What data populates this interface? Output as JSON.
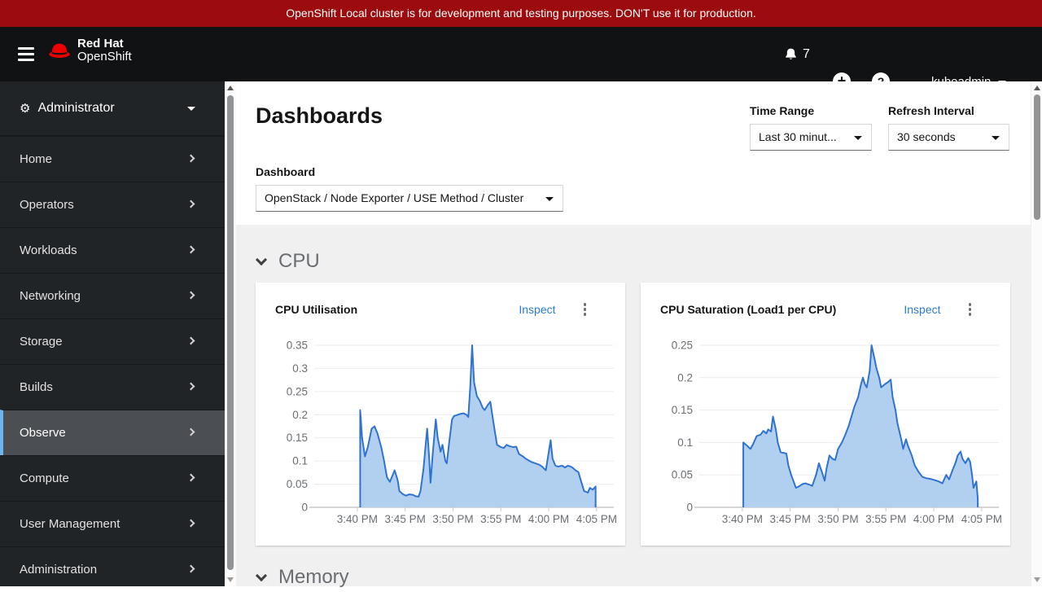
{
  "banner": {
    "text": "OpenShift Local cluster is for development and testing purposes. DON'T use it for production."
  },
  "masthead": {
    "logo_line1": "Red Hat",
    "logo_line2": "OpenShift",
    "notification_count": "7",
    "user": "kubeadmin"
  },
  "sidebar": {
    "perspective": "Administrator",
    "items": [
      {
        "label": "Home",
        "selected": false
      },
      {
        "label": "Operators",
        "selected": false
      },
      {
        "label": "Workloads",
        "selected": false
      },
      {
        "label": "Networking",
        "selected": false
      },
      {
        "label": "Storage",
        "selected": false
      },
      {
        "label": "Builds",
        "selected": false
      },
      {
        "label": "Observe",
        "selected": true
      },
      {
        "label": "Compute",
        "selected": false
      },
      {
        "label": "User Management",
        "selected": false
      },
      {
        "label": "Administration",
        "selected": false
      }
    ]
  },
  "page": {
    "title": "Dashboards",
    "time_range": {
      "label": "Time Range",
      "value": "Last 30 minut..."
    },
    "refresh_interval": {
      "label": "Refresh Interval",
      "value": "30 seconds"
    },
    "dashboard": {
      "label": "Dashboard",
      "value": "OpenStack / Node Exporter / USE Method / Cluster"
    },
    "sections": [
      {
        "title": "CPU",
        "expanded": true
      },
      {
        "title": "Memory",
        "expanded": true
      }
    ]
  },
  "cards": [
    {
      "title": "CPU Utilisation",
      "action": "Inspect"
    },
    {
      "title": "CPU Saturation (Load1 per CPU)",
      "action": "Inspect"
    }
  ],
  "colors": {
    "banner": "#9c0b0d",
    "brand_red": "#ee0000",
    "link": "#2b7cd9",
    "selected_nav_border": "#6cb5ee",
    "chart_stroke": "#2f72d0",
    "chart_fill": "#b1d0f0",
    "chart_grid": "#ececec",
    "chart_axis": "#c8c8ca",
    "chart_text": "#6a6e73"
  },
  "chart_data": [
    {
      "type": "area",
      "title": "CPU Utilisation",
      "x_unit": "minutes after 3:40 PM",
      "x_domain": [
        -4.5,
        26.8
      ],
      "y_domain": [
        0,
        0.35
      ],
      "x_ticks": [
        0,
        5,
        10,
        15,
        20,
        25
      ],
      "x_tick_labels": [
        "3:40 PM",
        "3:45 PM",
        "3:50 PM",
        "3:55 PM",
        "4:00 PM",
        "4:05 PM"
      ],
      "y_ticks": [
        0,
        0.05,
        0.1,
        0.15,
        0.2,
        0.25,
        0.3,
        0.35
      ],
      "y_tick_labels": [
        "0",
        "0.05",
        "0.1",
        "0.15",
        "0.2",
        "0.25",
        "0.3",
        "0.35"
      ],
      "grid": "horizontal",
      "legend": "none",
      "points": [
        [
          0.3,
          0.21
        ],
        [
          0.5,
          0.15
        ],
        [
          0.8,
          0.11
        ],
        [
          1.1,
          0.13
        ],
        [
          1.5,
          0.17
        ],
        [
          1.8,
          0.175
        ],
        [
          2.1,
          0.16
        ],
        [
          2.5,
          0.13
        ],
        [
          2.8,
          0.1
        ],
        [
          3.1,
          0.065
        ],
        [
          3.4,
          0.055
        ],
        [
          3.7,
          0.07
        ],
        [
          3.9,
          0.08
        ],
        [
          4.2,
          0.06
        ],
        [
          4.4,
          0.035
        ],
        [
          4.8,
          0.028
        ],
        [
          5.1,
          0.025
        ],
        [
          5.4,
          0.028
        ],
        [
          5.8,
          0.027
        ],
        [
          6.1,
          0.024
        ],
        [
          6.4,
          0.023
        ],
        [
          6.6,
          0.035
        ],
        [
          6.9,
          0.08
        ],
        [
          7.1,
          0.125
        ],
        [
          7.3,
          0.17
        ],
        [
          7.5,
          0.11
        ],
        [
          7.65,
          0.053
        ],
        [
          7.9,
          0.12
        ],
        [
          8.2,
          0.19
        ],
        [
          8.4,
          0.15
        ],
        [
          8.7,
          0.12
        ],
        [
          8.9,
          0.135
        ],
        [
          9.2,
          0.1
        ],
        [
          9.35,
          0.095
        ],
        [
          9.6,
          0.14
        ],
        [
          9.9,
          0.19
        ],
        [
          10.1,
          0.197
        ],
        [
          10.5,
          0.2
        ],
        [
          10.8,
          0.202
        ],
        [
          11.1,
          0.203
        ],
        [
          11.4,
          0.2
        ],
        [
          11.6,
          0.195
        ],
        [
          11.8,
          0.26
        ],
        [
          12.0,
          0.35
        ],
        [
          12.2,
          0.27
        ],
        [
          12.5,
          0.24
        ],
        [
          12.8,
          0.23
        ],
        [
          13.1,
          0.215
        ],
        [
          13.3,
          0.21
        ],
        [
          13.6,
          0.22
        ],
        [
          13.9,
          0.228
        ],
        [
          14.1,
          0.2
        ],
        [
          14.4,
          0.16
        ],
        [
          14.6,
          0.135
        ],
        [
          15.0,
          0.13
        ],
        [
          15.3,
          0.128
        ],
        [
          15.6,
          0.135
        ],
        [
          15.9,
          0.132
        ],
        [
          16.3,
          0.13
        ],
        [
          16.6,
          0.131
        ],
        [
          16.9,
          0.115
        ],
        [
          17.3,
          0.11
        ],
        [
          17.6,
          0.105
        ],
        [
          18.0,
          0.1
        ],
        [
          18.3,
          0.097
        ],
        [
          18.6,
          0.095
        ],
        [
          19.0,
          0.092
        ],
        [
          19.3,
          0.088
        ],
        [
          19.7,
          0.08
        ],
        [
          20.2,
          0.145
        ],
        [
          20.4,
          0.105
        ],
        [
          20.7,
          0.09
        ],
        [
          21.0,
          0.088
        ],
        [
          21.4,
          0.09
        ],
        [
          21.7,
          0.086
        ],
        [
          22.0,
          0.09
        ],
        [
          22.4,
          0.087
        ],
        [
          22.8,
          0.08
        ],
        [
          23.1,
          0.076
        ],
        [
          23.4,
          0.055
        ],
        [
          23.7,
          0.035
        ],
        [
          24.1,
          0.032
        ],
        [
          24.3,
          0.042
        ],
        [
          24.6,
          0.038
        ],
        [
          24.9,
          0.045
        ]
      ]
    },
    {
      "type": "area",
      "title": "CPU Saturation (Load1 per CPU)",
      "x_unit": "minutes after 3:40 PM",
      "x_domain": [
        -4.5,
        26.8
      ],
      "y_domain": [
        0,
        0.25
      ],
      "x_ticks": [
        0,
        5,
        10,
        15,
        20,
        25
      ],
      "x_tick_labels": [
        "3:40 PM",
        "3:45 PM",
        "3:50 PM",
        "3:55 PM",
        "4:00 PM",
        "4:05 PM"
      ],
      "y_ticks": [
        0,
        0.05,
        0.1,
        0.15,
        0.2,
        0.25
      ],
      "y_tick_labels": [
        "0",
        "0.05",
        "0.1",
        "0.15",
        "0.2",
        "0.25"
      ],
      "grid": "horizontal",
      "legend": "none",
      "points": [
        [
          0.1,
          0.1
        ],
        [
          0.5,
          0.095
        ],
        [
          0.85,
          0.09
        ],
        [
          1.2,
          0.1
        ],
        [
          1.5,
          0.11
        ],
        [
          1.9,
          0.112
        ],
        [
          2.2,
          0.118
        ],
        [
          2.5,
          0.114
        ],
        [
          2.7,
          0.12
        ],
        [
          3.0,
          0.117
        ],
        [
          3.2,
          0.14
        ],
        [
          3.5,
          0.12
        ],
        [
          3.7,
          0.1
        ],
        [
          4.0,
          0.085
        ],
        [
          4.3,
          0.084
        ],
        [
          4.6,
          0.083
        ],
        [
          4.8,
          0.065
        ],
        [
          5.1,
          0.05
        ],
        [
          5.4,
          0.038
        ],
        [
          5.6,
          0.03
        ],
        [
          6.0,
          0.033
        ],
        [
          6.3,
          0.036
        ],
        [
          6.6,
          0.037
        ],
        [
          7.0,
          0.035
        ],
        [
          7.3,
          0.033
        ],
        [
          7.7,
          0.05
        ],
        [
          8.0,
          0.068
        ],
        [
          8.3,
          0.055
        ],
        [
          8.6,
          0.041
        ],
        [
          8.8,
          0.06
        ],
        [
          9.1,
          0.08
        ],
        [
          9.4,
          0.075
        ],
        [
          9.7,
          0.073
        ],
        [
          10.0,
          0.09
        ],
        [
          10.4,
          0.1
        ],
        [
          10.7,
          0.11
        ],
        [
          11.1,
          0.125
        ],
        [
          11.4,
          0.14
        ],
        [
          11.7,
          0.155
        ],
        [
          12.1,
          0.17
        ],
        [
          12.4,
          0.19
        ],
        [
          12.6,
          0.2
        ],
        [
          12.8,
          0.19
        ],
        [
          13.0,
          0.185
        ],
        [
          13.3,
          0.21
        ],
        [
          13.5,
          0.25
        ],
        [
          13.8,
          0.23
        ],
        [
          14.0,
          0.215
        ],
        [
          14.3,
          0.2
        ],
        [
          14.5,
          0.185
        ],
        [
          14.9,
          0.19
        ],
        [
          15.2,
          0.193
        ],
        [
          15.5,
          0.197
        ],
        [
          15.7,
          0.17
        ],
        [
          16.0,
          0.15
        ],
        [
          16.2,
          0.13
        ],
        [
          16.6,
          0.105
        ],
        [
          16.8,
          0.09
        ],
        [
          17.1,
          0.105
        ],
        [
          17.3,
          0.095
        ],
        [
          17.7,
          0.08
        ],
        [
          18.0,
          0.065
        ],
        [
          18.4,
          0.055
        ],
        [
          18.8,
          0.047
        ],
        [
          19.2,
          0.045
        ],
        [
          19.6,
          0.044
        ],
        [
          20.1,
          0.042
        ],
        [
          20.5,
          0.04
        ],
        [
          20.9,
          0.037
        ],
        [
          21.3,
          0.05
        ],
        [
          21.6,
          0.043
        ],
        [
          21.9,
          0.055
        ],
        [
          22.3,
          0.07
        ],
        [
          22.5,
          0.08
        ],
        [
          22.8,
          0.086
        ],
        [
          23.0,
          0.075
        ],
        [
          23.3,
          0.068
        ],
        [
          23.6,
          0.076
        ],
        [
          23.8,
          0.07
        ],
        [
          24.0,
          0.05
        ],
        [
          24.15,
          0.03
        ],
        [
          24.3,
          0.035
        ],
        [
          24.45,
          0.04
        ],
        [
          24.6,
          0.013
        ]
      ]
    }
  ]
}
